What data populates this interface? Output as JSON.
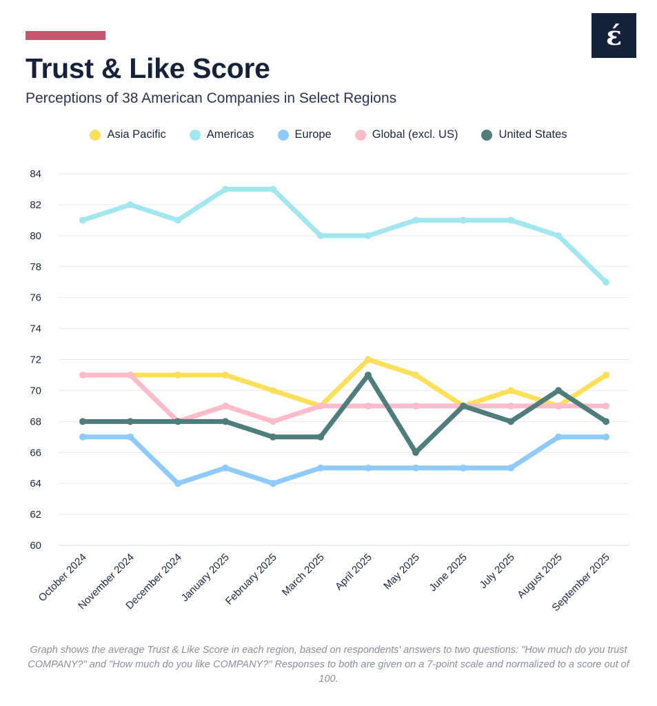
{
  "header": {
    "title": "Trust & Like Score",
    "subtitle": "Perceptions of 38 American Companies in Select Regions",
    "logo_glyph": "έ",
    "accent_color": "#c4566d"
  },
  "caption": "Graph shows the average Trust & Like Score in each region, based on respondents' answers to two questions: \"How much do you trust COMPANY?\" and \"How much do you like COMPANY?\" Responses to both are given on a 7-point scale and normalized to a score out of 100.",
  "chart_data": {
    "type": "line",
    "title": "Trust & Like Score",
    "subtitle": "Perceptions of 38 American Companies in Select Regions",
    "xlabel": "",
    "ylabel": "",
    "ylim": [
      60,
      84
    ],
    "yticks": [
      60,
      62,
      64,
      66,
      68,
      70,
      72,
      74,
      76,
      78,
      80,
      82,
      84
    ],
    "grid": true,
    "legend_position": "top-center",
    "categories": [
      "October 2024",
      "November 2024",
      "December 2024",
      "January 2025",
      "February 2025",
      "March 2025",
      "April 2025",
      "May 2025",
      "June 2025",
      "July 2025",
      "August 2025",
      "September 2025"
    ],
    "series": [
      {
        "name": "Asia Pacific",
        "color": "#fcdf5a",
        "values": [
          71,
          71,
          71,
          71,
          70,
          69,
          72,
          71,
          69,
          70,
          69,
          71
        ]
      },
      {
        "name": "Americas",
        "color": "#a2e7ee",
        "values": [
          81,
          82,
          81,
          83,
          83,
          80,
          80,
          81,
          81,
          81,
          80,
          77
        ]
      },
      {
        "name": "Europe",
        "color": "#8ecafc",
        "values": [
          67,
          67,
          64,
          65,
          64,
          65,
          65,
          65,
          65,
          65,
          67,
          67
        ]
      },
      {
        "name": "Global (excl. US)",
        "color": "#fcbcca",
        "values": [
          71,
          71,
          68,
          69,
          68,
          69,
          69,
          69,
          69,
          69,
          69,
          69
        ]
      },
      {
        "name": "United States",
        "color": "#4f7d7c",
        "values": [
          68,
          68,
          68,
          68,
          67,
          67,
          71,
          66,
          69,
          68,
          70,
          68
        ]
      }
    ]
  }
}
